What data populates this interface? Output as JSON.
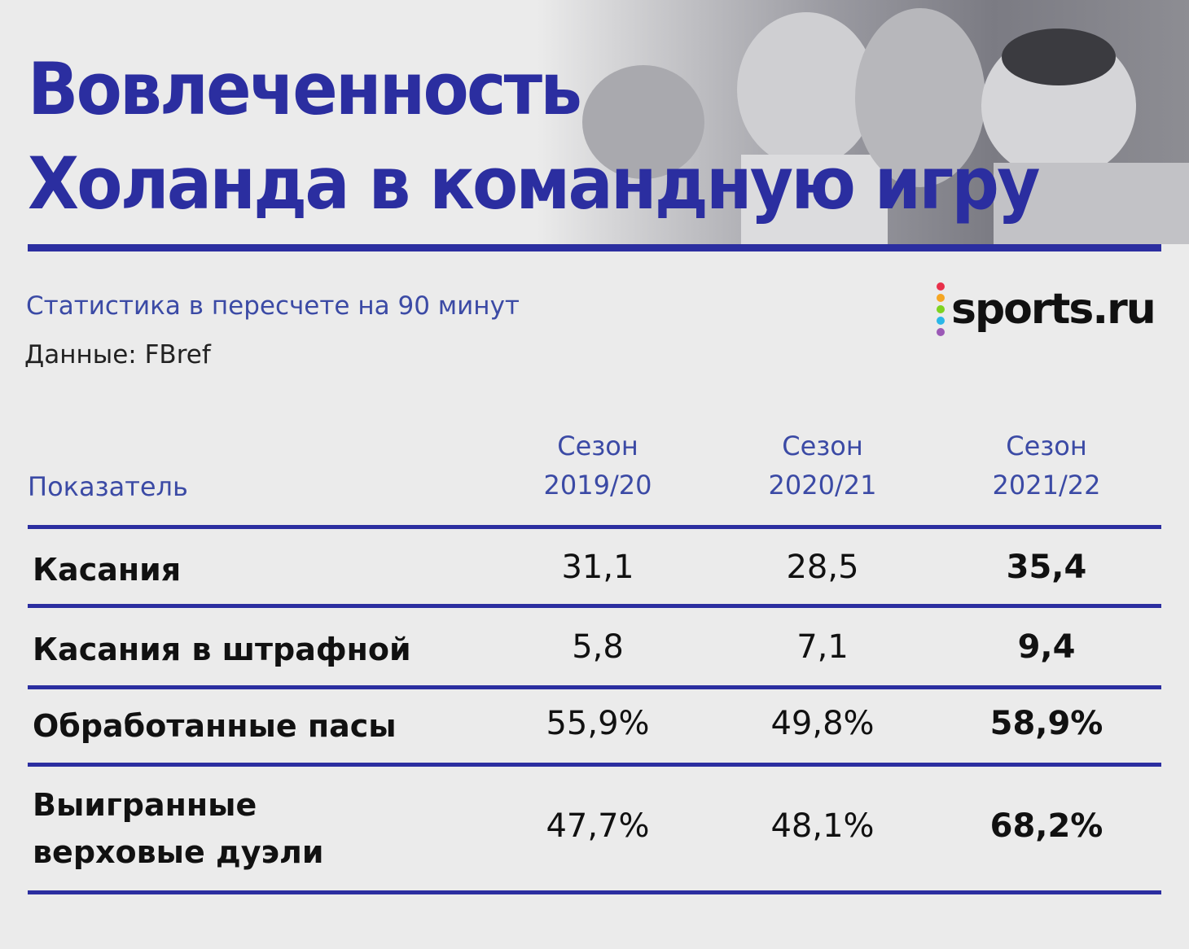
{
  "title_line1": "Вовлеченность",
  "title_line2": "Холанда в командную игру",
  "subtitle": "Статистика в пересчете на 90 минут",
  "source": "Данные: FBref",
  "logo": {
    "text": "sports.ru",
    "dot_colors": [
      "#e8304a",
      "#f5a623",
      "#7ed321",
      "#2ab7e8",
      "#9b59b6"
    ]
  },
  "colors": {
    "accent": "#2b2ea0",
    "subtle_text": "#3b4aa5",
    "background": "#ebebeb"
  },
  "chart_data": {
    "type": "table",
    "header": {
      "metric": "Показатель",
      "seasons": [
        {
          "line1": "Сезон",
          "line2": "2019/20"
        },
        {
          "line1": "Сезон",
          "line2": "2020/21"
        },
        {
          "line1": "Сезон",
          "line2": "2021/22"
        }
      ]
    },
    "rows": [
      {
        "metric": [
          "Касания"
        ],
        "values": [
          "31,1",
          "28,5",
          "35,4"
        ]
      },
      {
        "metric": [
          "Касания в штрафной"
        ],
        "values": [
          "5,8",
          "7,1",
          "9,4"
        ]
      },
      {
        "metric": [
          "Обработанные пасы"
        ],
        "values": [
          "55,9%",
          "49,8%",
          "58,9%"
        ]
      },
      {
        "metric": [
          "Выигранные",
          "верховые дуэли"
        ],
        "values": [
          "47,7%",
          "48,1%",
          "68,2%"
        ]
      }
    ],
    "highlight_column": 2
  }
}
